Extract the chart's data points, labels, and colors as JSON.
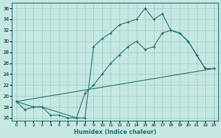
{
  "xlabel": "Humidex (Indice chaleur)",
  "xlim": [
    -0.5,
    23.5
  ],
  "ylim": [
    15.5,
    37
  ],
  "xticks": [
    0,
    1,
    2,
    3,
    4,
    5,
    6,
    7,
    8,
    9,
    10,
    11,
    12,
    13,
    14,
    15,
    16,
    17,
    18,
    19,
    20,
    21,
    22,
    23
  ],
  "yticks": [
    16,
    18,
    20,
    22,
    24,
    26,
    28,
    30,
    32,
    34,
    36
  ],
  "bg_color": "#c5e8e2",
  "grid_color": "#9dc8c0",
  "line_color": "#1a6e6e",
  "line1_x": [
    0,
    1,
    2,
    3,
    4,
    5,
    6,
    7,
    8,
    9,
    10,
    11,
    12,
    13,
    14,
    15,
    16,
    17,
    18,
    19,
    20,
    21,
    22,
    23
  ],
  "line1_y": [
    19,
    17.5,
    18,
    18,
    16.5,
    16.5,
    16,
    16,
    16,
    29,
    30.5,
    31.5,
    33,
    33.5,
    34,
    36,
    34,
    35,
    32,
    31.5,
    30,
    27.5,
    25,
    25
  ],
  "line2_x": [
    0,
    2,
    3,
    7,
    8,
    9,
    10,
    11,
    12,
    13,
    14,
    15,
    16,
    17,
    18,
    19,
    20,
    21,
    22,
    23
  ],
  "line2_y": [
    19,
    18,
    18,
    16,
    20.5,
    22,
    24,
    26,
    27.5,
    29,
    30,
    28.5,
    29,
    31.5,
    32,
    31.5,
    30,
    27.5,
    25,
    25
  ],
  "line3_x": [
    0,
    23
  ],
  "line3_y": [
    19,
    25
  ]
}
